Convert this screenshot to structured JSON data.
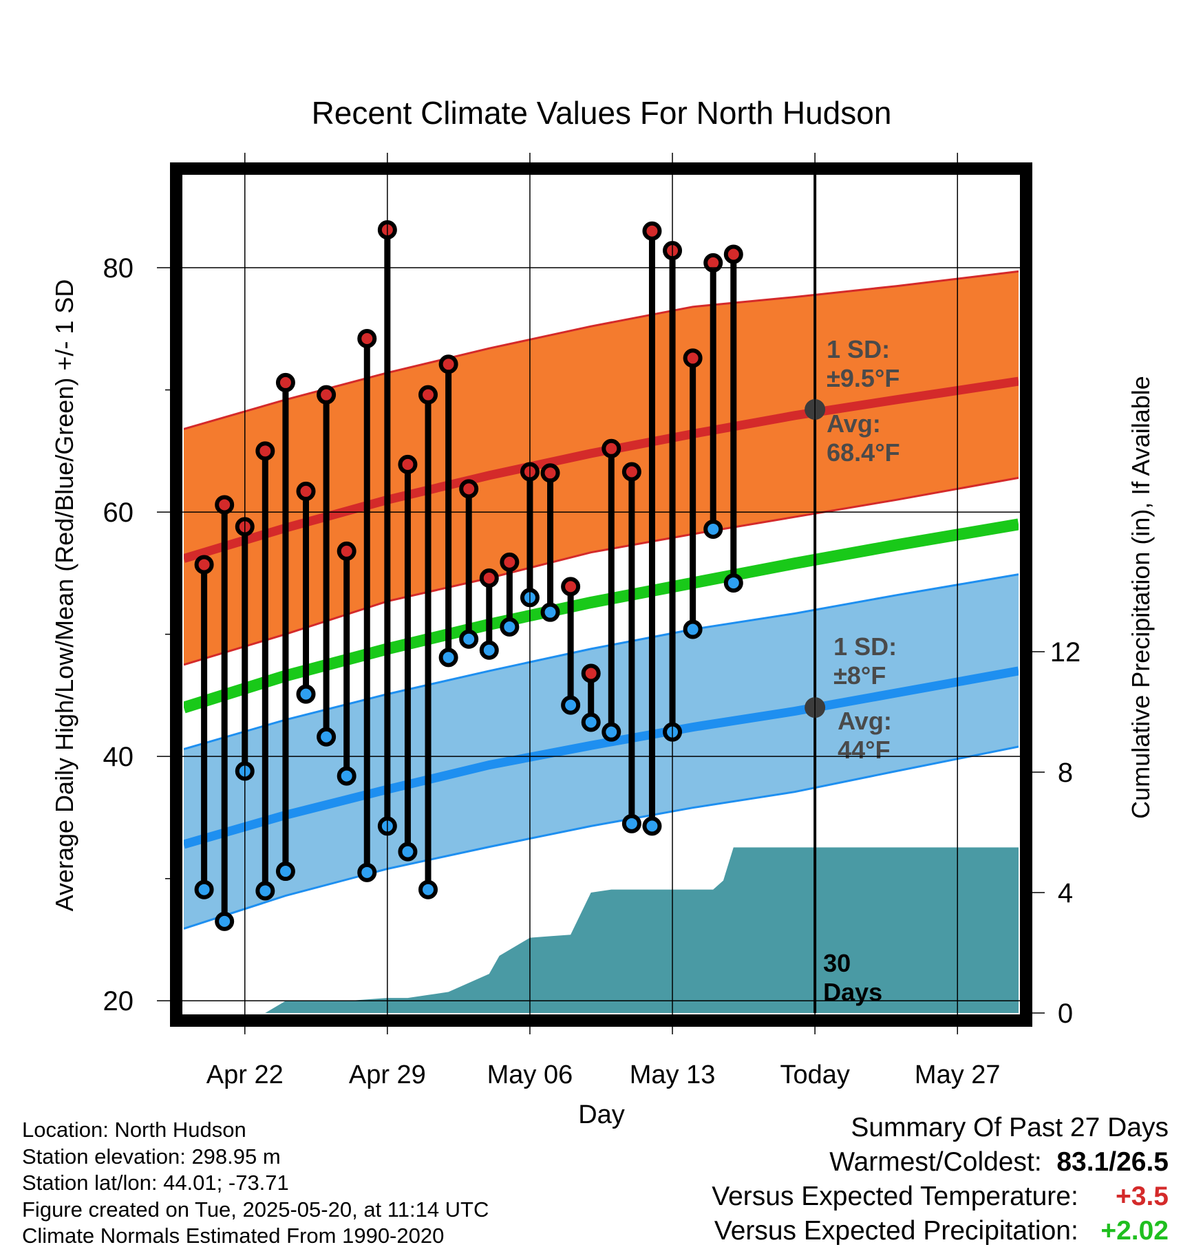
{
  "chart_data": {
    "type": "line",
    "title": "Recent Climate Values For North Hudson",
    "xlabel": "Day",
    "ylabel": "Average Daily High/Low/Mean (Red/Blue/Green) +/- 1 SD",
    "y2label": "Cumulative Precipitation (in), If Available",
    "ylim": [
      19,
      88
    ],
    "y2lim": [
      0,
      28
    ],
    "xlim": [
      -22,
      19
    ],
    "xticks": [
      {
        "x": -19,
        "label": "Apr 22"
      },
      {
        "x": -12,
        "label": "Apr 29"
      },
      {
        "x": -5,
        "label": "May 06"
      },
      {
        "x": 2,
        "label": "May 13"
      },
      {
        "x": 9,
        "label": "Today"
      },
      {
        "x": 16,
        "label": "May 27"
      }
    ],
    "yticks": [
      20,
      40,
      60,
      80
    ],
    "y2ticks": [
      0,
      4,
      8,
      12
    ],
    "grid": true,
    "colors": {
      "high_band": "#f47b2e",
      "high_avg": "#d42a2a",
      "low_band": "#84c0e6",
      "low_avg": "#1e8ff0",
      "mean": "#19c919",
      "precip": "#4a9aa4",
      "high_dot": "#d42a2a",
      "low_dot": "#2ea0f2",
      "today_dot": "#3c3c3c",
      "annotation": "#4a4a4a"
    },
    "normals": {
      "x": [
        -22,
        -17,
        -12,
        -7,
        -2,
        3,
        8,
        13,
        19
      ],
      "high_avg": [
        56.2,
        58.7,
        61.0,
        63.0,
        64.8,
        66.4,
        67.9,
        69.2,
        70.7
      ],
      "high_upper": [
        66.8,
        69.2,
        71.4,
        73.4,
        75.2,
        76.8,
        77.6,
        78.5,
        79.7
      ],
      "high_lower": [
        47.5,
        50.0,
        52.7,
        54.6,
        56.7,
        58.2,
        59.6,
        61.0,
        62.8
      ],
      "mean": [
        44.0,
        46.6,
        48.8,
        50.8,
        52.6,
        54.2,
        55.8,
        57.3,
        59.0
      ],
      "low_avg": [
        32.8,
        35.2,
        37.3,
        39.3,
        40.9,
        42.4,
        43.7,
        45.2,
        47.0
      ],
      "low_upper": [
        40.6,
        43.0,
        45.1,
        47.0,
        48.8,
        50.4,
        51.7,
        53.2,
        54.9
      ],
      "low_lower": [
        25.9,
        28.6,
        30.8,
        32.6,
        34.3,
        35.8,
        37.1,
        38.8,
        40.8
      ]
    },
    "days": [
      -21,
      -20,
      -19,
      -18,
      -17,
      -16,
      -15,
      -14,
      -13,
      -12,
      -11,
      -10,
      -9,
      -8,
      -7,
      -6,
      -5,
      -4,
      -3,
      -2,
      -1,
      0,
      1,
      2,
      3,
      4,
      5
    ],
    "highs": [
      55.7,
      60.6,
      58.8,
      65.0,
      70.6,
      61.7,
      69.6,
      56.8,
      74.2,
      83.1,
      63.9,
      69.6,
      72.1,
      61.9,
      54.6,
      55.9,
      63.3,
      63.2,
      53.9,
      46.8,
      65.2,
      63.3,
      83.0,
      81.4,
      72.6,
      80.4,
      81.1
    ],
    "lows": [
      29.1,
      26.5,
      38.8,
      29.0,
      30.6,
      45.1,
      41.6,
      38.4,
      30.5,
      34.3,
      32.2,
      29.1,
      48.1,
      49.6,
      48.7,
      50.6,
      53.0,
      51.8,
      44.2,
      42.8,
      42.0,
      34.5,
      34.3,
      42.0,
      50.4,
      58.6,
      54.2
    ],
    "precip": {
      "x": [
        -18,
        -17,
        -16,
        -14,
        -13,
        -12,
        -11,
        -10,
        -9,
        -8,
        -7,
        -6.5,
        -5,
        -4,
        -3,
        -2,
        -1,
        0,
        1,
        2,
        3,
        4,
        4.5,
        5,
        19
      ],
      "y": [
        0,
        0.4,
        0.4,
        0.4,
        0.45,
        0.5,
        0.5,
        0.6,
        0.7,
        1.0,
        1.3,
        1.9,
        2.5,
        2.55,
        2.6,
        4.0,
        4.1,
        4.1,
        4.1,
        4.1,
        4.1,
        4.1,
        4.4,
        5.5,
        5.5
      ]
    },
    "today_x": 9,
    "high_annotation": {
      "sd_label": "1 SD:",
      "sd_value": "±9.5°F",
      "avg_label": "Avg:",
      "avg_value": "68.4°F",
      "avg": 68.4
    },
    "low_annotation": {
      "sd_label": "1 SD:",
      "sd_value": "±8°F",
      "avg_label": "Avg:",
      "avg_value": "44°F",
      "avg": 44
    },
    "window_label": [
      "30",
      "Days"
    ]
  },
  "info": {
    "location": "Location: North Hudson",
    "elevation": "Station elevation: 298.95 m",
    "latlon": "Station lat/lon: 44.01; -73.71",
    "created": "Figure created on Tue, 2025-05-20, at 11:14 UTC",
    "normals": "Climate Normals Estimated From 1990-2020"
  },
  "summary": {
    "title": "Summary Of Past 27 Days",
    "warm_cold_label": "Warmest/Coldest:",
    "warm_cold_value": "83.1/26.5",
    "temp_label": "Versus Expected Temperature:",
    "temp_value": "+3.5",
    "precip_label": "Versus Expected Precipitation:",
    "precip_value": "+2.02"
  }
}
